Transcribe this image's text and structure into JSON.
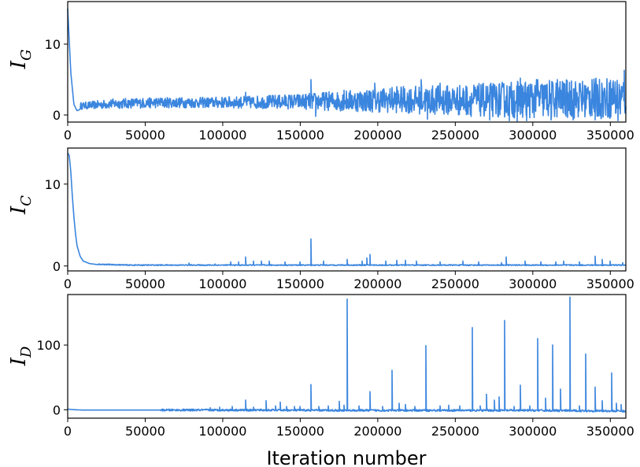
{
  "figure": {
    "xlabel": "Iteration number"
  },
  "colors": {
    "series": "#3a85de"
  },
  "chart_data": [
    {
      "type": "line",
      "ylabel_main": "I",
      "ylabel_sub": "G",
      "xlim": [
        0,
        360000
      ],
      "ylim": [
        -1,
        16
      ],
      "xticks": [
        0,
        50000,
        100000,
        150000,
        200000,
        250000,
        300000,
        350000
      ],
      "yticks": [
        0,
        10
      ],
      "series": [
        {
          "x": [
            0,
            2000,
            4000,
            6000,
            8000,
            12000,
            20000,
            30000,
            50000,
            80000,
            100000,
            130000,
            150000,
            160000,
            180000,
            200000,
            220000,
            240000,
            260000,
            280000,
            300000,
            320000,
            340000,
            360000
          ],
          "y": [
            15,
            6,
            1.5,
            0.6,
            0.8,
            1.1,
            1.5,
            1.7,
            1.7,
            1.8,
            1.8,
            1.8,
            1.9,
            2.0,
            2.0,
            2.1,
            2.1,
            2.2,
            2.2,
            2.3,
            2.3,
            2.3,
            2.4,
            2.4
          ],
          "band": [
            [
              10000,
              0.8,
              1.8
            ],
            [
              30000,
              0.9,
              2.3
            ],
            [
              60000,
              1.0,
              2.5
            ],
            [
              90000,
              1.0,
              2.5
            ],
            [
              120000,
              0.9,
              2.7
            ],
            [
              150000,
              0.8,
              3.0
            ],
            [
              180000,
              0.5,
              3.5
            ],
            [
              210000,
              0.3,
              4.0
            ],
            [
              240000,
              0.0,
              4.2
            ],
            [
              270000,
              -0.3,
              4.5
            ],
            [
              300000,
              -0.5,
              5.0
            ],
            [
              330000,
              -0.5,
              5.0
            ],
            [
              358000,
              -0.6,
              5.5
            ]
          ],
          "spikes": [
            [
              115000,
              3.2
            ],
            [
              157000,
              5.0
            ],
            [
              178000,
              3.5
            ],
            [
              198000,
              4.5
            ],
            [
              212000,
              4.0
            ],
            [
              228000,
              5.0
            ],
            [
              240000,
              4.5
            ],
            [
              262000,
              4.2
            ],
            [
              292000,
              5.2
            ],
            [
              303000,
              5.0
            ],
            [
              316000,
              5.0
            ],
            [
              325000,
              4.8
            ],
            [
              338000,
              5.0
            ],
            [
              345000,
              3.5
            ],
            [
              352000,
              4.8
            ],
            [
              359000,
              6.3
            ],
            [
              160000,
              -0.2
            ],
            [
              232000,
              -0.6
            ],
            [
              272000,
              -0.7
            ],
            [
              285000,
              -0.8
            ],
            [
              296000,
              -0.8
            ],
            [
              312000,
              -0.7
            ],
            [
              340000,
              -0.7
            ],
            [
              355000,
              -0.8
            ],
            [
              290000,
              -0.9
            ],
            [
              326000,
              -0.7
            ]
          ]
        }
      ]
    },
    {
      "type": "line",
      "ylabel_main": "I",
      "ylabel_sub": "C",
      "xlim": [
        0,
        360000
      ],
      "ylim": [
        -0.6,
        14.4
      ],
      "xticks": [
        0,
        50000,
        100000,
        150000,
        200000,
        250000,
        300000,
        350000
      ],
      "yticks": [
        0,
        10
      ],
      "series": [
        {
          "x": [
            0,
            1000,
            2000,
            3000,
            4000,
            5000,
            6000,
            8000,
            10000,
            14000,
            20000,
            40000,
            80000,
            120000,
            160000,
            200000,
            240000,
            280000,
            320000,
            360000
          ],
          "y": [
            13.8,
            13.5,
            11.5,
            8.5,
            6.0,
            4.0,
            2.5,
            1.2,
            0.6,
            0.3,
            0.15,
            0.05,
            0.05,
            0.05,
            0.05,
            0.05,
            0.05,
            0.05,
            0.05,
            0.05
          ],
          "spikes": [
            [
              78000,
              0.35
            ],
            [
              95000,
              0.25
            ],
            [
              105000,
              0.5
            ],
            [
              110000,
              0.5
            ],
            [
              115000,
              1.1
            ],
            [
              120000,
              0.6
            ],
            [
              125000,
              0.6
            ],
            [
              130000,
              0.6
            ],
            [
              140000,
              0.5
            ],
            [
              150000,
              0.5
            ],
            [
              157000,
              3.3
            ],
            [
              165000,
              0.6
            ],
            [
              180000,
              0.8
            ],
            [
              190000,
              0.6
            ],
            [
              193000,
              1.0
            ],
            [
              195000,
              1.4
            ],
            [
              205000,
              0.6
            ],
            [
              212000,
              0.7
            ],
            [
              218000,
              0.7
            ],
            [
              225000,
              0.6
            ],
            [
              240000,
              0.5
            ],
            [
              255000,
              0.6
            ],
            [
              265000,
              0.5
            ],
            [
              280000,
              0.4
            ],
            [
              283000,
              1.1
            ],
            [
              295000,
              0.6
            ],
            [
              305000,
              0.5
            ],
            [
              315000,
              0.5
            ],
            [
              320000,
              0.6
            ],
            [
              330000,
              0.5
            ],
            [
              340000,
              1.2
            ],
            [
              345000,
              0.8
            ],
            [
              350000,
              0.6
            ],
            [
              358000,
              0.4
            ]
          ]
        }
      ]
    },
    {
      "type": "line",
      "ylabel_main": "I",
      "ylabel_sub": "D",
      "xlim": [
        0,
        360000
      ],
      "ylim": [
        -13,
        178
      ],
      "xticks": [
        0,
        50000,
        100000,
        150000,
        200000,
        250000,
        300000,
        350000
      ],
      "yticks": [
        0,
        100
      ],
      "xlabel": "Iteration number",
      "series": [
        {
          "x": [
            0,
            2000,
            5000,
            10000,
            60000,
            120000,
            180000,
            240000,
            300000,
            358000,
            360000
          ],
          "y": [
            1,
            0.5,
            0,
            -0.5,
            -0.5,
            -0.5,
            -1,
            -1,
            -1,
            -2,
            -3
          ],
          "spikes": [
            [
              92000,
              3
            ],
            [
              98000,
              4
            ],
            [
              106000,
              5
            ],
            [
              115000,
              15
            ],
            [
              120000,
              4
            ],
            [
              128000,
              14
            ],
            [
              134000,
              6
            ],
            [
              137000,
              12
            ],
            [
              141000,
              5
            ],
            [
              146000,
              5
            ],
            [
              150000,
              5
            ],
            [
              157000,
              39
            ],
            [
              162000,
              5
            ],
            [
              168000,
              6
            ],
            [
              175000,
              13
            ],
            [
              178000,
              7
            ],
            [
              180000,
              171
            ],
            [
              188000,
              6
            ],
            [
              195000,
              28
            ],
            [
              203000,
              5
            ],
            [
              209000,
              61
            ],
            [
              214000,
              10
            ],
            [
              218000,
              8
            ],
            [
              224000,
              5
            ],
            [
              231000,
              99
            ],
            [
              240000,
              6
            ],
            [
              246000,
              7
            ],
            [
              253000,
              6
            ],
            [
              261000,
              127
            ],
            [
              266000,
              6
            ],
            [
              270000,
              24
            ],
            [
              275000,
              15
            ],
            [
              278000,
              20
            ],
            [
              282000,
              138
            ],
            [
              288000,
              5
            ],
            [
              292000,
              38
            ],
            [
              298000,
              6
            ],
            [
              303000,
              110
            ],
            [
              308000,
              18
            ],
            [
              313000,
              100
            ],
            [
              318000,
              32
            ],
            [
              324000,
              174
            ],
            [
              330000,
              6
            ],
            [
              334000,
              86
            ],
            [
              340000,
              35
            ],
            [
              345000,
              14
            ],
            [
              351000,
              57
            ],
            [
              354000,
              10
            ],
            [
              357000,
              8
            ]
          ]
        }
      ]
    }
  ]
}
